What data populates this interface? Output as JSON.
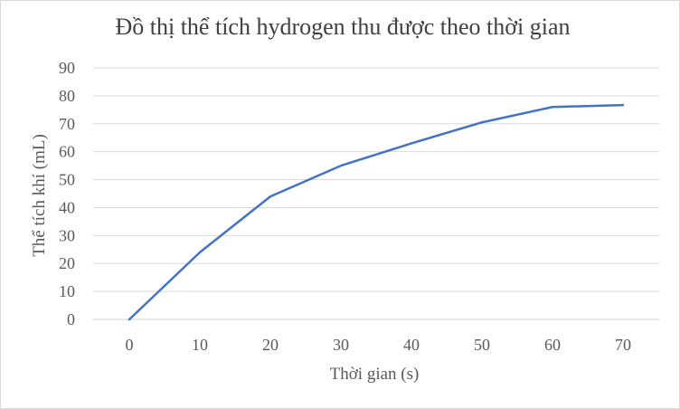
{
  "chart_data": {
    "type": "line",
    "title": "Đồ thị thể tích hydrogen thu được theo thời gian",
    "xlabel": "Thời gian (s)",
    "ylabel": "Thể tích khí (mL)",
    "x": [
      0,
      10,
      20,
      30,
      40,
      50,
      60,
      70
    ],
    "series": [
      {
        "values": [
          0,
          24,
          44,
          55,
          63,
          70.5,
          76,
          76.7
        ]
      }
    ],
    "x_ticks": [
      "0",
      "10",
      "20",
      "30",
      "40",
      "50",
      "60",
      "70"
    ],
    "y_ticks": [
      "0",
      "10",
      "20",
      "30",
      "40",
      "50",
      "60",
      "70",
      "80",
      "90"
    ],
    "ylim": [
      0,
      90
    ],
    "grid": "horizontal",
    "legend": "none",
    "colors": {
      "line": "#4472c4",
      "grid": "#d9d9d9",
      "text": "#595959",
      "title": "#404040"
    }
  }
}
